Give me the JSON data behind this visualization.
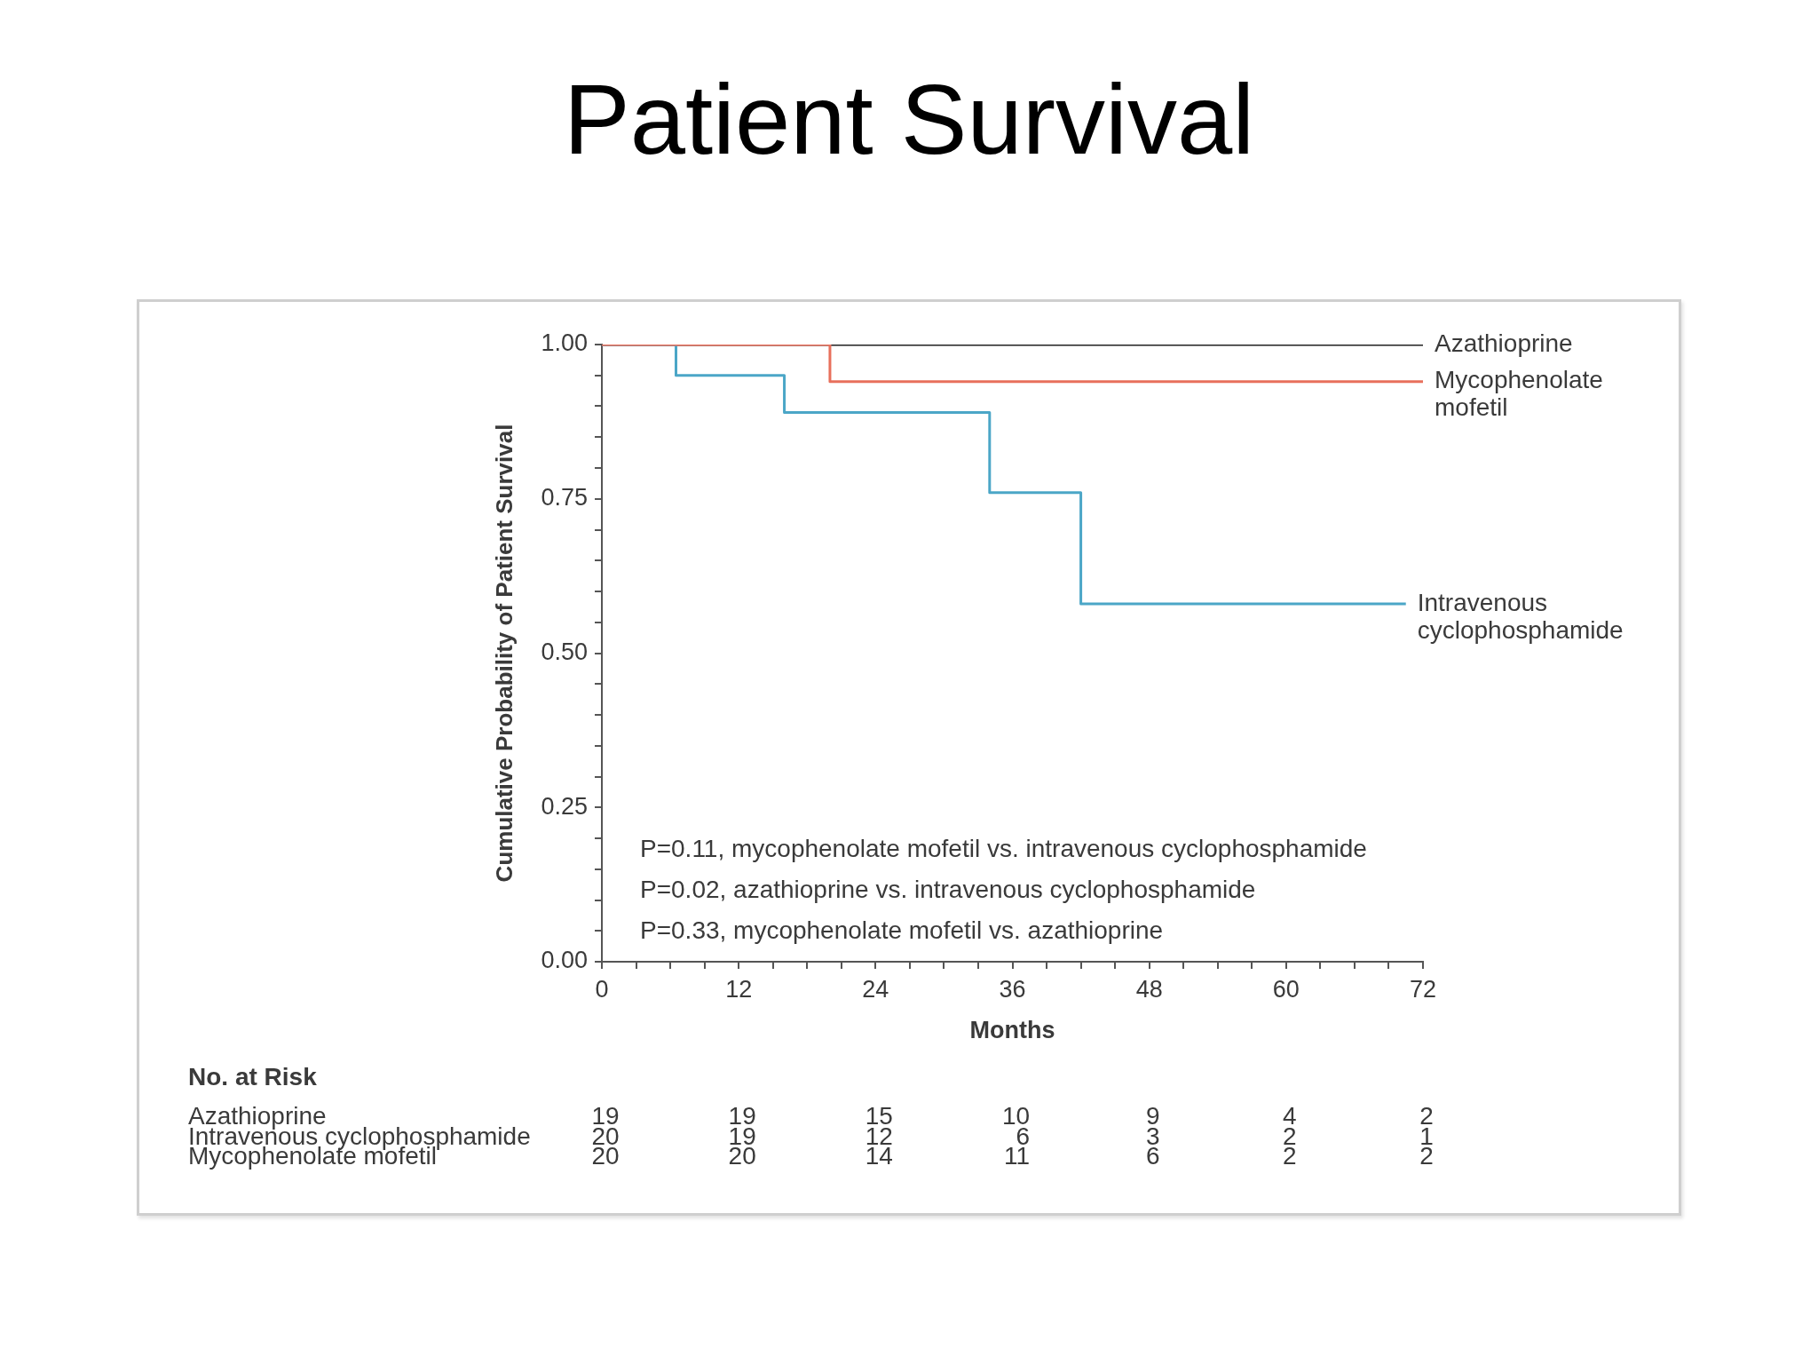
{
  "chart_data": [
    {
      "type": "step",
      "title": "Patient Survival",
      "xlabel": "Months",
      "ylabel": "Cumulative Probability of Patient Survival",
      "series": [
        {
          "name": "Mycophenolate mofetil",
          "color": "#e8705c",
          "x": [
            0,
            20,
            72
          ],
          "values": [
            1,
            0.94,
            0.94
          ]
        },
        {
          "name": "Intravenous cyclophosphamide",
          "color": "#4ba6c7",
          "x": [
            0,
            6.5,
            16,
            34,
            42,
            70.5
          ],
          "values": [
            1,
            0.95,
            0.89,
            0.76,
            0.58,
            0.58
          ]
        },
        {
          "name": "Azathioprine",
          "color": "#222222",
          "x": [
            0,
            72
          ],
          "values": [
            1,
            1
          ]
        }
      ],
      "xlim": [
        0,
        72
      ],
      "xticks": [
        0,
        {
          "value": 3,
          "label": null
        },
        {
          "value": 6,
          "label": null
        },
        {
          "value": 9,
          "label": null
        },
        12,
        {
          "value": 15,
          "label": null
        },
        {
          "value": 18,
          "label": null
        },
        {
          "value": 21,
          "label": null
        },
        24,
        {
          "value": 27,
          "label": null
        },
        {
          "value": 30,
          "label": null
        },
        {
          "value": 33,
          "label": null
        },
        36,
        {
          "value": 39,
          "label": null
        },
        {
          "value": 42,
          "label": null
        },
        {
          "value": 45,
          "label": null
        },
        48,
        {
          "value": 51,
          "label": null
        },
        {
          "value": 54,
          "label": null
        },
        {
          "value": 57,
          "label": null
        },
        60,
        {
          "value": 63,
          "label": null
        },
        {
          "value": 66,
          "label": null
        },
        {
          "value": 69,
          "label": null
        },
        72
      ],
      "ylim": [
        0,
        1
      ],
      "yticks": [
        {
          "value": 0,
          "label": "0.00"
        },
        {
          "value": 0.05,
          "label": null
        },
        {
          "value": 0.1,
          "label": null
        },
        {
          "value": 0.15,
          "label": null
        },
        {
          "value": 0.2,
          "label": null
        },
        0.25,
        {
          "value": 0.3,
          "label": null
        },
        {
          "value": 0.35,
          "label": null
        },
        {
          "value": 0.4,
          "label": null
        },
        {
          "value": 0.45,
          "label": null
        },
        {
          "value": 0.5,
          "label": "0.50"
        },
        {
          "value": 0.55,
          "label": null
        },
        {
          "value": 0.6,
          "label": null
        },
        {
          "value": 0.65,
          "label": null
        },
        {
          "value": 0.7,
          "label": null
        },
        0.75,
        {
          "value": 0.8,
          "label": null
        },
        {
          "value": 0.85,
          "label": null
        },
        {
          "value": 0.9,
          "label": null
        },
        {
          "value": 0.95,
          "label": null
        },
        {
          "value": 1,
          "label": "1.00"
        }
      ],
      "annotations": [
        "P=0.11, mycophenolate mofetil vs. intravenous cyclophosphamide",
        "P=0.02, azathioprine vs. intravenous cyclophosphamide",
        "P=0.33, mycophenolate mofetil vs. azathioprine"
      ]
    },
    {
      "type": "heatmap",
      "title": "No. at Risk",
      "categories": [
        "0",
        "12",
        "24",
        "36",
        "48",
        "60",
        "72"
      ],
      "tick_labels": "y",
      "y_categories": [
        "Azathioprine",
        "Intravenous cyclophosphamide",
        "Mycophenolate mofetil"
      ],
      "cells": [
        [
          19,
          19,
          15,
          10,
          9,
          4,
          2
        ],
        [
          20,
          19,
          12,
          6,
          3,
          2,
          1
        ],
        [
          20,
          20,
          14,
          11,
          6,
          2,
          2
        ]
      ],
      "data_labels": true
    }
  ]
}
